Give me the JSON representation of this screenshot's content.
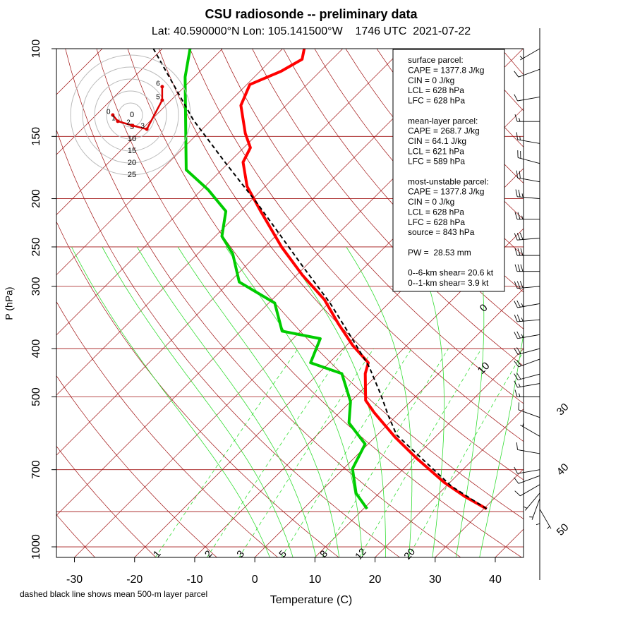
{
  "chart_data": {
    "type": "skewt",
    "title": "CSU radiosonde -- preliminary data",
    "subtitle": "Lat: 40.590000°N Lon: 105.141500°W    1746 UTC  2021-07-22",
    "xlabel": "Temperature (C)",
    "ylabel": "P (hPa)",
    "note": "dashed black line shows mean 500-m layer parcel",
    "xlim": [
      -33,
      44.7
    ],
    "ylim": [
      1050,
      100
    ],
    "xticks": [
      -30,
      -20,
      -10,
      0,
      10,
      20,
      30,
      40
    ],
    "yticks": [
      100,
      150,
      200,
      250,
      300,
      400,
      500,
      700,
      1000
    ],
    "isobars": [
      100,
      150,
      200,
      250,
      300,
      400,
      500,
      700,
      850,
      1000
    ],
    "isotherms": [
      -110,
      -100,
      -90,
      -80,
      -70,
      -60,
      -50,
      -40,
      -30,
      -20,
      -10,
      0,
      10,
      20,
      30,
      40,
      50
    ],
    "isotherm_labels": [
      0,
      10,
      30,
      40,
      50
    ],
    "dry_adiabats": [
      -40,
      -30,
      -20,
      -10,
      0,
      10,
      20,
      30,
      40,
      50,
      60,
      70,
      80,
      90,
      100,
      110,
      120,
      130,
      140,
      150,
      160,
      170
    ],
    "moist_adiabats": [
      0,
      4,
      8,
      12,
      16,
      20,
      24,
      28,
      32,
      36
    ],
    "mixing_ratios": [
      1,
      2,
      3,
      5,
      8,
      12,
      20
    ],
    "series": [
      {
        "color": "#ff0000",
        "pressure": [
          839,
          794,
          743,
          663,
          602,
          537,
          508,
          449,
          427,
          394,
          357,
          319,
          285,
          250,
          212,
          189,
          169,
          158,
          148,
          130,
          118,
          111,
          105,
          100
        ],
        "values": [
          30.5,
          25.0,
          19.1,
          10.3,
          3.3,
          -4.3,
          -7.7,
          -12.2,
          -13.5,
          -19.0,
          -24.9,
          -31.3,
          -39.0,
          -47.2,
          -56.6,
          -63.0,
          -67.7,
          -68.9,
          -72.1,
          -77.5,
          -79.5,
          -76.5,
          -75.0,
          -76.4
        ]
      },
      {
        "color": "#00cc00",
        "pressure": [
          839,
          781,
          697,
          622,
          564,
          511,
          449,
          427,
          382,
          369,
          324,
          294,
          258,
          238,
          212,
          192,
          175,
          114,
          100
        ],
        "values": [
          10.6,
          6.2,
          1.5,
          -0.5,
          -6.7,
          -10.0,
          -16.1,
          -23.1,
          -25.5,
          -33.1,
          -39.0,
          -48.4,
          -54.2,
          -58.9,
          -62.4,
          -68.9,
          -75.9,
          -91.5,
          -95.4
        ]
      },
      {
        "color": "#000000",
        "dashed": true,
        "pressure": [
          839,
          756,
          596,
          545,
          495,
          435,
          382,
          324,
          275,
          205,
          169,
          139,
          100
        ],
        "values": [
          30.5,
          20.9,
          3.2,
          -1.4,
          -6.1,
          -12.7,
          -20.2,
          -29.8,
          -40.1,
          -58.3,
          -70.7,
          -83.0,
          -101.5
        ]
      }
    ],
    "hodograph": {
      "rings": [
        0,
        5,
        10,
        15,
        20,
        25
      ],
      "color": "#dd0000",
      "u": [
        -7.4,
        -5.3,
        0.9,
        6.8,
        13.2,
        13.2
      ],
      "v": [
        0,
        -2.6,
        -4.4,
        -5.9,
        6.2,
        11.8
      ],
      "labels": [
        "0",
        "1",
        "2",
        "3",
        "5",
        "6"
      ]
    },
    "winds": {
      "pressure": [
        840,
        820,
        800,
        780,
        750,
        720,
        700,
        650,
        600,
        550,
        500,
        470,
        450,
        420,
        400,
        375,
        350,
        325,
        300,
        280,
        260,
        240,
        220,
        200,
        185,
        170,
        155,
        140,
        125,
        110,
        100
      ],
      "direction": [
        150,
        180,
        200,
        220,
        240,
        250,
        260,
        280,
        300,
        290,
        270,
        260,
        255,
        250,
        255,
        260,
        265,
        260,
        265,
        270,
        270,
        265,
        270,
        275,
        280,
        285,
        280,
        270,
        260,
        250,
        240
      ],
      "speed": [
        5,
        5,
        8,
        8,
        10,
        10,
        12,
        10,
        8,
        12,
        15,
        18,
        20,
        20,
        22,
        25,
        25,
        28,
        30,
        30,
        32,
        30,
        28,
        25,
        22,
        20,
        18,
        15,
        12,
        10,
        8
      ]
    },
    "info": [
      [
        "surface parcel:",
        "CAPE = 1377.8 J/kg",
        "CIN = 0 J/kg",
        "LCL = 628 hPa",
        "LFC = 628 hPa"
      ],
      [
        "mean-layer parcel:",
        "CAPE = 268.7 J/kg",
        "CIN = 64.1 J/kg",
        "LCL = 621 hPa",
        "LFC = 589 hPa"
      ],
      [
        "most-unstable parcel:",
        "CAPE = 1377.8 J/kg",
        "CIN = 0 J/kg",
        "LCL = 628 hPa",
        "LFC = 628 hPa",
        "source = 843 hPa"
      ],
      [
        "PW =  28.53 mm"
      ],
      [
        "0--6-km shear= 20.6 kt",
        "0--1-km shear= 3.9 kt"
      ]
    ]
  }
}
